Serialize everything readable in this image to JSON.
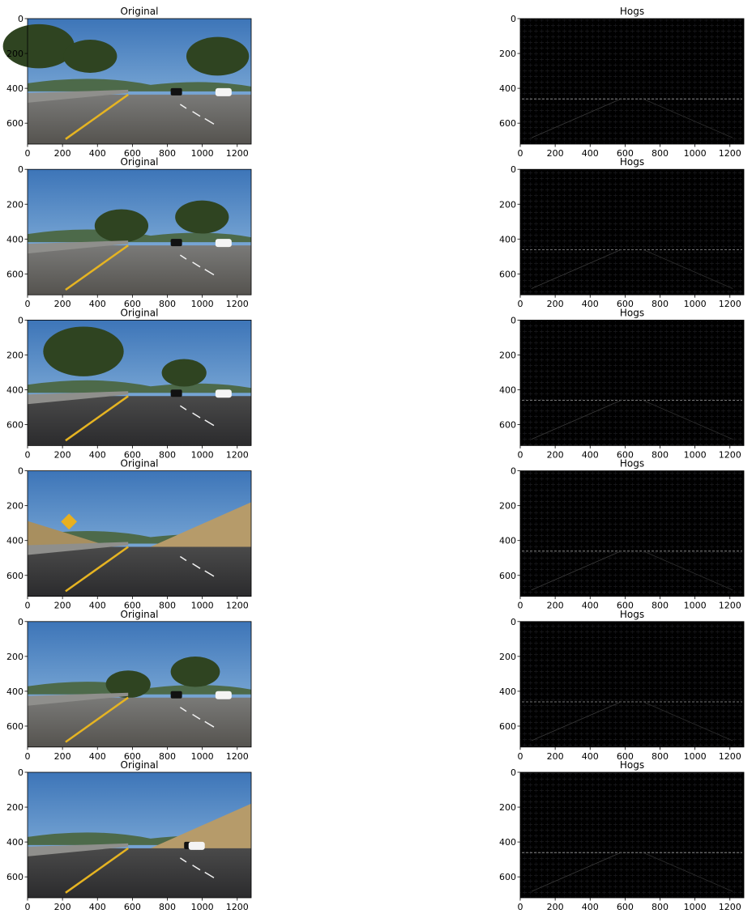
{
  "figure": {
    "background": "#ffffff"
  },
  "chart_data": [
    {
      "type": "image",
      "title": "Original",
      "row": 0,
      "col": 0,
      "xlim": [
        0,
        1280
      ],
      "ylim": [
        720,
        0
      ],
      "xticks": [
        0,
        200,
        400,
        600,
        800,
        1000,
        1200
      ],
      "yticks": [
        0,
        200,
        400,
        600
      ]
    },
    {
      "type": "image",
      "title": "Hogs",
      "row": 0,
      "col": 1,
      "xlim": [
        0,
        1280
      ],
      "ylim": [
        720,
        0
      ],
      "xticks": [
        0,
        200,
        400,
        600,
        800,
        1000,
        1200
      ],
      "yticks": [
        0,
        200,
        400,
        600
      ]
    },
    {
      "type": "image",
      "title": "Original",
      "row": 1,
      "col": 0,
      "xlim": [
        0,
        1280
      ],
      "ylim": [
        720,
        0
      ],
      "xticks": [
        0,
        200,
        400,
        600,
        800,
        1000,
        1200
      ],
      "yticks": [
        0,
        200,
        400,
        600
      ]
    },
    {
      "type": "image",
      "title": "Hogs",
      "row": 1,
      "col": 1,
      "xlim": [
        0,
        1280
      ],
      "ylim": [
        720,
        0
      ],
      "xticks": [
        0,
        200,
        400,
        600,
        800,
        1000,
        1200
      ],
      "yticks": [
        0,
        200,
        400,
        600
      ]
    },
    {
      "type": "image",
      "title": "Original",
      "row": 2,
      "col": 0,
      "xlim": [
        0,
        1280
      ],
      "ylim": [
        720,
        0
      ],
      "xticks": [
        0,
        200,
        400,
        600,
        800,
        1000,
        1200
      ],
      "yticks": [
        0,
        200,
        400,
        600
      ]
    },
    {
      "type": "image",
      "title": "Hogs",
      "row": 2,
      "col": 1,
      "xlim": [
        0,
        1280
      ],
      "ylim": [
        720,
        0
      ],
      "xticks": [
        0,
        200,
        400,
        600,
        800,
        1000,
        1200
      ],
      "yticks": [
        0,
        200,
        400,
        600
      ]
    },
    {
      "type": "image",
      "title": "Original",
      "row": 3,
      "col": 0,
      "xlim": [
        0,
        1280
      ],
      "ylim": [
        720,
        0
      ],
      "xticks": [
        0,
        200,
        400,
        600,
        800,
        1000,
        1200
      ],
      "yticks": [
        0,
        200,
        400,
        600
      ]
    },
    {
      "type": "image",
      "title": "Hogs",
      "row": 3,
      "col": 1,
      "xlim": [
        0,
        1280
      ],
      "ylim": [
        720,
        0
      ],
      "xticks": [
        0,
        200,
        400,
        600,
        800,
        1000,
        1200
      ],
      "yticks": [
        0,
        200,
        400,
        600
      ]
    },
    {
      "type": "image",
      "title": "Original",
      "row": 4,
      "col": 0,
      "xlim": [
        0,
        1280
      ],
      "ylim": [
        720,
        0
      ],
      "xticks": [
        0,
        200,
        400,
        600,
        800,
        1000,
        1200
      ],
      "yticks": [
        0,
        200,
        400,
        600
      ]
    },
    {
      "type": "image",
      "title": "Hogs",
      "row": 4,
      "col": 1,
      "xlim": [
        0,
        1280
      ],
      "ylim": [
        720,
        0
      ],
      "xticks": [
        0,
        200,
        400,
        600,
        800,
        1000,
        1200
      ],
      "yticks": [
        0,
        200,
        400,
        600
      ]
    },
    {
      "type": "image",
      "title": "Original",
      "row": 5,
      "col": 0,
      "xlim": [
        0,
        1280
      ],
      "ylim": [
        720,
        0
      ],
      "xticks": [
        0,
        200,
        400,
        600,
        800,
        1000,
        1200
      ],
      "yticks": [
        0,
        200,
        400,
        600
      ]
    },
    {
      "type": "image",
      "title": "Hogs",
      "row": 5,
      "col": 1,
      "xlim": [
        0,
        1280
      ],
      "ylim": [
        720,
        0
      ],
      "xticks": [
        0,
        200,
        400,
        600,
        800,
        1000,
        1200
      ],
      "yticks": [
        0,
        200,
        400,
        600
      ]
    }
  ]
}
